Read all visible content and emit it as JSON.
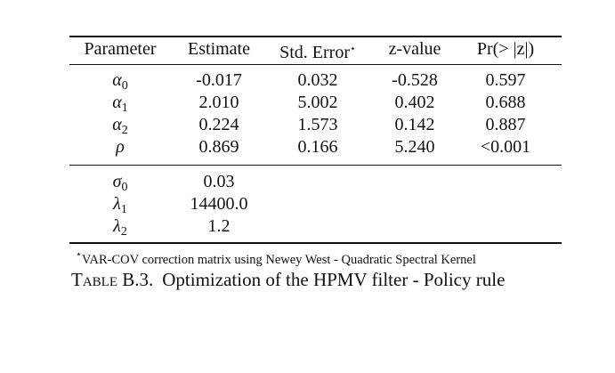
{
  "table": {
    "header": [
      "Parameter",
      "Estimate",
      "Std. Error",
      "z-value",
      "Pr(> |z|)"
    ],
    "header_mark": "⋆",
    "rows": [
      [
        {
          "base": "α",
          "sub": "0"
        },
        "-0.017",
        "0.032",
        "-0.528",
        "0.597"
      ],
      [
        {
          "base": "α",
          "sub": "1"
        },
        "2.010",
        "5.002",
        "0.402",
        "0.688"
      ],
      [
        {
          "base": "α",
          "sub": "2"
        },
        "0.224",
        "1.573",
        "0.142",
        "0.887"
      ],
      [
        {
          "base": "ρ"
        },
        "0.869",
        "0.166",
        "5.240",
        "<0.001"
      ]
    ],
    "lower_rows": [
      [
        {
          "base": "σ",
          "sub": "0"
        },
        "0.03"
      ],
      [
        {
          "base": "λ",
          "sub": "1"
        },
        "14400.0"
      ],
      [
        {
          "base": "λ",
          "sub": "2"
        },
        "1.2"
      ]
    ],
    "footnote_mark": "⋆",
    "footnote": "VAR-COV correction matrix using Newey West - Quadratic Spectral Kernel"
  },
  "caption": {
    "label": "Table B.3.",
    "text": "Optimization of the HPMV filter - Policy rule"
  }
}
